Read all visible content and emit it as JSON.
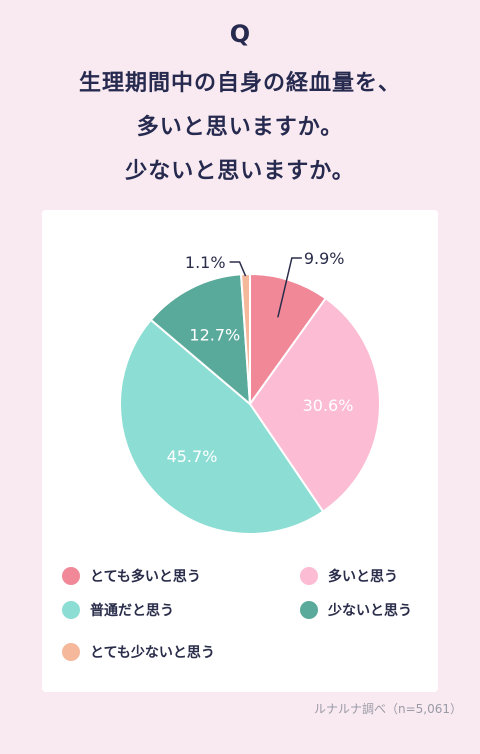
{
  "header": {
    "q_mark": "Q",
    "question_lines": [
      "生理期間中の自身の経血量を、",
      "多いと思いますか。",
      "少ないと思いますか。"
    ]
  },
  "chart_data": {
    "type": "pie",
    "slices": [
      {
        "label": "とても多いと思う",
        "value": 9.9,
        "display": "9.9%",
        "color": "#f08898"
      },
      {
        "label": "多いと思う",
        "value": 30.6,
        "display": "30.6%",
        "color": "#fbbcd4"
      },
      {
        "label": "普通だと思う",
        "value": 45.7,
        "display": "45.7%",
        "color": "#8cddd4"
      },
      {
        "label": "少ないと思う",
        "value": 12.7,
        "display": "12.7%",
        "color": "#5aaa9c"
      },
      {
        "label": "とても少ないと思う",
        "value": 1.1,
        "display": "1.1%",
        "color": "#f5b89a"
      }
    ]
  },
  "legend": {
    "items": [
      {
        "label": "とても多いと思う",
        "color": "#f08898"
      },
      {
        "label": "多いと思う",
        "color": "#fbbcd4"
      },
      {
        "label": "普通だと思う",
        "color": "#8cddd4"
      },
      {
        "label": "少ないと思う",
        "color": "#5aaa9c"
      },
      {
        "label": "とても少ないと思う",
        "color": "#f5b89a"
      }
    ]
  },
  "source": "ルナルナ調べ（n=5,061）"
}
